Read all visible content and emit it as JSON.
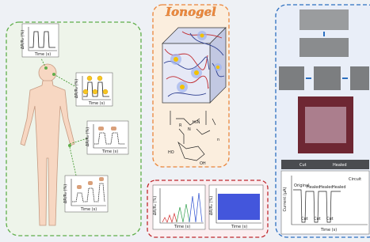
{
  "title": "Ionogel",
  "left_panel": {
    "plots": [
      {
        "y_label": "ΔR/R₀ (%)",
        "x_label": "Time (s)"
      },
      {
        "y_label": "ΔR/R₀ (%)",
        "x_label": "Time (s)"
      },
      {
        "y_label": "ΔR/R₀ (%)",
        "x_label": "Time (s)"
      },
      {
        "y_label": "ΔR/R₀ (%)",
        "x_label": "Time (s)"
      }
    ]
  },
  "chemistry": {
    "r": "R",
    "n_atom": "N",
    "amine": "H₂N",
    "repeat": "n",
    "hydroxyl_left": "HO",
    "hydroxyl_right": "OH"
  },
  "bottom_panel": {
    "plots": [
      {
        "y_label": "ΔR/R₀ (%)",
        "x_label": "Time (s)"
      },
      {
        "y_label": "ΔR/R₀ (%)",
        "x_label": "Time (s)"
      }
    ]
  },
  "right_panel": {
    "strip": [
      "Cut",
      "Healed"
    ],
    "plot": {
      "legend": "Circuit",
      "states": [
        "Original",
        "Healed",
        "Healed",
        "Healed"
      ],
      "cuts": [
        "Cut",
        "Cut",
        "Cut"
      ],
      "y_label": "Current (μA)",
      "x_label": "Time (s)"
    }
  }
}
